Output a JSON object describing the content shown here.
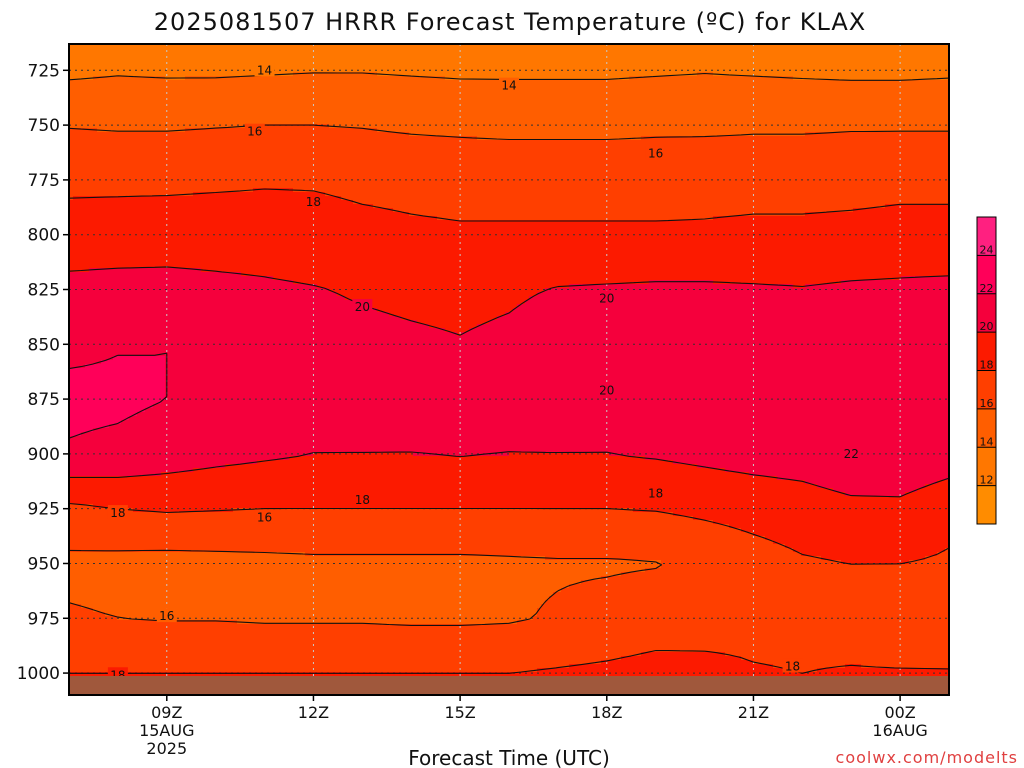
{
  "chart_data": {
    "type": "heatmap",
    "title": "2025081507 HRRR Forecast Temperature (ºC) for KLAX",
    "xlabel": "Forecast Time (UTC)",
    "ylabel": "",
    "credit": "coolwx.com/modelts",
    "y_scale": "pressure (inverted)",
    "ylim": [
      1010,
      713
    ],
    "y_ticks": [
      725,
      750,
      775,
      800,
      825,
      850,
      875,
      900,
      925,
      950,
      975,
      1000
    ],
    "x_hours": [
      7,
      8,
      9,
      10,
      11,
      12,
      13,
      14,
      15,
      16,
      17,
      18,
      19,
      20,
      21,
      22,
      23,
      24,
      25
    ],
    "x_ticks": [
      {
        "hour": 9,
        "label": "09Z",
        "label2": "15AUG",
        "label3": "2025"
      },
      {
        "hour": 12,
        "label": "12Z"
      },
      {
        "hour": 15,
        "label": "15Z"
      },
      {
        "hour": 18,
        "label": "18Z"
      },
      {
        "hour": 21,
        "label": "21Z"
      },
      {
        "hour": 24,
        "label": "00Z",
        "label2": "16AUG"
      }
    ],
    "grid": true,
    "colorbar": {
      "levels": [
        10,
        12,
        14,
        16,
        18,
        20,
        22,
        24,
        26
      ],
      "colors": [
        "#ff8c00",
        "#ff7700",
        "#ff5e00",
        "#ff3f00",
        "#fc1a00",
        "#f5003c",
        "#ff0059",
        "#ff2080"
      ],
      "tick_labels": [
        "12",
        "14",
        "16",
        "18",
        "20",
        "22",
        "24"
      ]
    },
    "pressure_levels": [
      725,
      750,
      775,
      800,
      825,
      850,
      875,
      900,
      925,
      950,
      975,
      1000
    ],
    "temperature": [
      [
        13.6,
        13.8,
        13.7,
        13.7,
        13.8,
        13.9,
        13.9,
        13.8,
        13.7,
        13.7,
        13.7,
        13.7,
        13.8,
        13.9,
        13.8,
        13.7,
        13.6,
        13.6,
        13.7
      ],
      [
        15.9,
        15.8,
        15.8,
        15.9,
        16.0,
        16.0,
        15.9,
        15.7,
        15.6,
        15.5,
        15.5,
        15.5,
        15.6,
        15.6,
        15.7,
        15.7,
        15.8,
        15.8,
        15.8
      ],
      [
        17.6,
        17.6,
        17.6,
        17.7,
        17.8,
        17.8,
        17.6,
        17.5,
        17.4,
        17.4,
        17.4,
        17.4,
        17.4,
        17.5,
        17.5,
        17.5,
        17.5,
        17.6,
        17.6
      ],
      [
        18.8,
        18.9,
        19.0,
        19.0,
        19.0,
        18.8,
        18.5,
        18.3,
        18.2,
        18.2,
        18.2,
        18.2,
        18.2,
        18.2,
        18.3,
        18.3,
        18.4,
        18.5,
        18.5
      ],
      [
        20.6,
        20.7,
        20.7,
        20.5,
        20.3,
        20.1,
        19.8,
        19.6,
        19.5,
        19.7,
        20.1,
        20.2,
        20.3,
        20.3,
        20.2,
        20.1,
        20.3,
        20.4,
        20.5
      ],
      [
        21.6,
        21.9,
        22.0,
        21.8,
        21.0,
        20.7,
        20.5,
        20.3,
        20.1,
        20.4,
        21.0,
        21.2,
        21.2,
        21.1,
        21.0,
        20.9,
        21.0,
        21.1,
        21.2
      ],
      [
        22.5,
        22.4,
        22.0,
        21.5,
        21.0,
        20.8,
        20.6,
        20.4,
        20.2,
        20.3,
        20.7,
        20.5,
        21.0,
        21.2,
        21.3,
        21.4,
        21.6,
        21.8,
        21.7
      ],
      [
        21.8,
        21.5,
        21.0,
        20.6,
        20.3,
        20.0,
        20.0,
        20.0,
        20.1,
        20.0,
        20.0,
        20.0,
        20.2,
        20.5,
        20.8,
        21.0,
        21.6,
        21.8,
        21.2
      ],
      [
        17.6,
        18.0,
        18.2,
        18.1,
        18.0,
        18.0,
        18.0,
        18.0,
        18.0,
        18.0,
        18.0,
        18.0,
        18.1,
        18.4,
        18.7,
        19.0,
        19.5,
        19.5,
        18.5
      ],
      [
        15.5,
        15.4,
        15.3,
        15.4,
        15.5,
        15.6,
        15.6,
        15.6,
        15.6,
        15.7,
        15.8,
        15.8,
        15.9,
        16.5,
        17.2,
        17.8,
        18.0,
        18.0,
        17.8
      ],
      [
        16.2,
        16.0,
        15.9,
        15.9,
        15.8,
        15.8,
        15.8,
        15.7,
        15.7,
        15.8,
        16.2,
        16.6,
        17.0,
        17.4,
        17.6,
        17.6,
        17.4,
        17.0,
        16.8
      ],
      [
        18.0,
        18.0,
        18.0,
        18.0,
        18.0,
        18.0,
        18.0,
        18.0,
        18.0,
        18.0,
        18.2,
        18.4,
        18.7,
        18.4,
        18.1,
        18.0,
        18.1,
        18.1,
        18.1
      ]
    ],
    "contour_labels": [
      {
        "text": "14",
        "hour": 11,
        "p": 725
      },
      {
        "text": "14",
        "hour": 16,
        "p": 732
      },
      {
        "text": "16",
        "hour": 10.8,
        "p": 753
      },
      {
        "text": "16",
        "hour": 19,
        "p": 763
      },
      {
        "text": "18",
        "hour": 12,
        "p": 785
      },
      {
        "text": "20",
        "hour": 13,
        "p": 833
      },
      {
        "text": "20",
        "hour": 18,
        "p": 829
      },
      {
        "text": "20",
        "hour": 18,
        "p": 871
      },
      {
        "text": "22",
        "hour": 23,
        "p": 900
      },
      {
        "text": "18",
        "hour": 8,
        "p": 927
      },
      {
        "text": "18",
        "hour": 13,
        "p": 921
      },
      {
        "text": "18",
        "hour": 19,
        "p": 918
      },
      {
        "text": "16",
        "hour": 11,
        "p": 929
      },
      {
        "text": "16",
        "hour": 9,
        "p": 974
      },
      {
        "text": "18",
        "hour": 8,
        "p": 1001
      },
      {
        "text": "18",
        "hour": 21.8,
        "p": 997
      }
    ]
  }
}
